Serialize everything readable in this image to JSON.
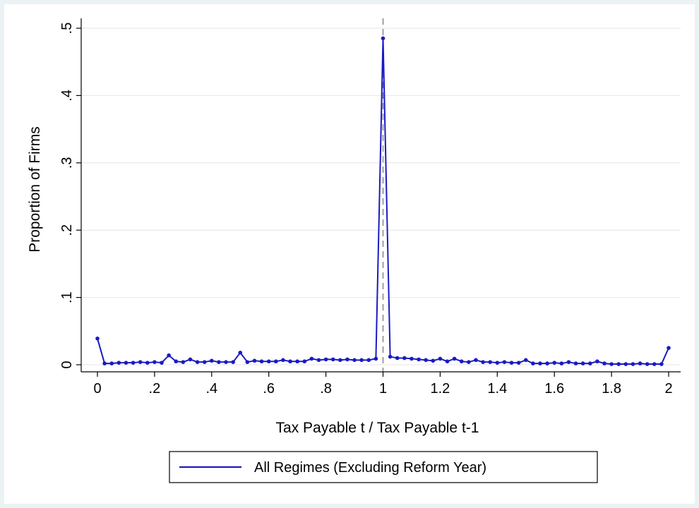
{
  "chart_data": {
    "type": "line",
    "xlabel": "Tax Payable t / Tax Payable t-1",
    "ylabel": "Proportion of Firms",
    "xlim": [
      0,
      2
    ],
    "ylim": [
      0,
      0.5
    ],
    "x_ticks": [
      "0",
      ".2",
      ".4",
      ".6",
      ".8",
      "1",
      "1.2",
      "1.4",
      "1.6",
      "1.8",
      "2"
    ],
    "y_ticks": [
      "0",
      ".1",
      ".2",
      ".3",
      ".4",
      ".5"
    ],
    "grid": true,
    "legend_position": "bottom",
    "reference_line_x": 1,
    "series": [
      {
        "name": "All Regimes (Excluding Reform Year)",
        "color": "#1a1ac4",
        "x": [
          0,
          0.025,
          0.05,
          0.075,
          0.1,
          0.125,
          0.15,
          0.175,
          0.2,
          0.225,
          0.25,
          0.275,
          0.3,
          0.325,
          0.35,
          0.375,
          0.4,
          0.425,
          0.45,
          0.475,
          0.5,
          0.525,
          0.55,
          0.575,
          0.6,
          0.625,
          0.65,
          0.675,
          0.7,
          0.725,
          0.75,
          0.775,
          0.8,
          0.825,
          0.85,
          0.875,
          0.9,
          0.925,
          0.95,
          0.975,
          1,
          1.025,
          1.05,
          1.075,
          1.1,
          1.125,
          1.15,
          1.175,
          1.2,
          1.225,
          1.25,
          1.275,
          1.3,
          1.325,
          1.35,
          1.375,
          1.4,
          1.425,
          1.45,
          1.475,
          1.5,
          1.525,
          1.55,
          1.575,
          1.6,
          1.625,
          1.65,
          1.675,
          1.7,
          1.725,
          1.75,
          1.775,
          1.8,
          1.825,
          1.85,
          1.875,
          1.9,
          1.925,
          1.95,
          1.975,
          2
        ],
        "y": [
          0.039,
          0.002,
          0.002,
          0.003,
          0.003,
          0.003,
          0.004,
          0.003,
          0.004,
          0.003,
          0.014,
          0.005,
          0.004,
          0.008,
          0.004,
          0.004,
          0.006,
          0.004,
          0.004,
          0.004,
          0.018,
          0.004,
          0.006,
          0.005,
          0.005,
          0.005,
          0.007,
          0.005,
          0.005,
          0.005,
          0.009,
          0.007,
          0.008,
          0.008,
          0.007,
          0.008,
          0.007,
          0.007,
          0.007,
          0.009,
          0.485,
          0.012,
          0.01,
          0.01,
          0.009,
          0.008,
          0.007,
          0.006,
          0.009,
          0.005,
          0.009,
          0.005,
          0.004,
          0.007,
          0.004,
          0.004,
          0.003,
          0.004,
          0.003,
          0.003,
          0.007,
          0.002,
          0.002,
          0.002,
          0.003,
          0.002,
          0.004,
          0.002,
          0.002,
          0.002,
          0.005,
          0.002,
          0.001,
          0.001,
          0.001,
          0.001,
          0.002,
          0.001,
          0.001,
          0.001,
          0.025
        ]
      }
    ]
  }
}
